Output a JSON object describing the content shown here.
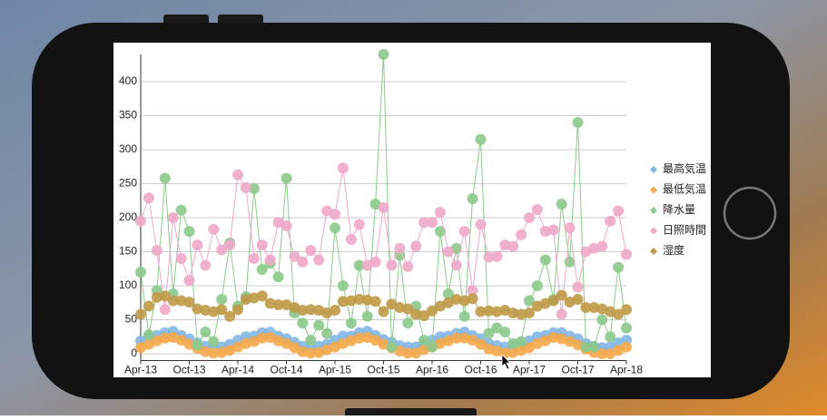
{
  "chart_data": {
    "type": "line",
    "categories": [
      "Apr-13",
      null,
      null,
      null,
      null,
      null,
      "Oct-13",
      null,
      null,
      null,
      null,
      null,
      "Apr-14",
      null,
      null,
      null,
      null,
      null,
      "Oct-14",
      null,
      null,
      null,
      null,
      null,
      "Apr-15",
      null,
      null,
      null,
      null,
      null,
      "Oct-15",
      null,
      null,
      null,
      null,
      null,
      "Apr-16",
      null,
      null,
      null,
      null,
      null,
      "Oct-16",
      null,
      null,
      null,
      null,
      null,
      "Apr-17",
      null,
      null,
      null,
      null,
      null,
      "Oct-17",
      null,
      null,
      null,
      null,
      null,
      "Apr-18"
    ],
    "ylim": [
      -10,
      440
    ],
    "yticks": [
      0,
      50,
      100,
      150,
      200,
      250,
      300,
      350,
      400
    ],
    "grid": true,
    "legend": "right",
    "series": [
      {
        "name": "最高気温",
        "color": "#83b7e6",
        "values": [
          19,
          24,
          27,
          31,
          33,
          27,
          22,
          16,
          11,
          10,
          10,
          14,
          20,
          25,
          26,
          31,
          32,
          26,
          22,
          17,
          11,
          10,
          11,
          14,
          20,
          26,
          26,
          31,
          33,
          27,
          21,
          17,
          12,
          10,
          10,
          15,
          20,
          25,
          26,
          30,
          32,
          27,
          22,
          15,
          12,
          10,
          11,
          14,
          19,
          25,
          27,
          31,
          31,
          26,
          22,
          15,
          11,
          9,
          10,
          16,
          20
        ]
      },
      {
        "name": "最低気温",
        "color": "#f5a94a",
        "values": [
          9,
          14,
          19,
          23,
          24,
          20,
          14,
          8,
          3,
          1,
          2,
          5,
          10,
          15,
          18,
          23,
          24,
          19,
          15,
          9,
          3,
          1,
          2,
          6,
          10,
          15,
          19,
          23,
          24,
          20,
          14,
          9,
          4,
          1,
          1,
          6,
          10,
          15,
          19,
          23,
          23,
          20,
          14,
          7,
          4,
          1,
          2,
          5,
          9,
          15,
          19,
          24,
          22,
          18,
          13,
          7,
          2,
          0,
          0,
          5,
          10
        ]
      },
      {
        "name": "降水量",
        "color": "#8cc98c",
        "values": [
          120,
          28,
          93,
          258,
          88,
          211,
          180,
          13,
          32,
          18,
          80,
          163,
          70,
          84,
          243,
          124,
          133,
          113,
          258,
          60,
          45,
          20,
          42,
          30,
          185,
          100,
          45,
          130,
          55,
          220,
          440,
          10,
          145,
          45,
          70,
          20,
          10,
          180,
          88,
          155,
          55,
          228,
          315,
          30,
          38,
          32,
          15,
          18,
          78,
          100,
          138,
          80,
          220,
          135,
          340,
          10,
          10,
          50,
          25,
          127,
          38
        ]
      },
      {
        "name": "日照時間",
        "color": "#eea8c8",
        "values": [
          195,
          229,
          152,
          65,
          200,
          140,
          108,
          160,
          130,
          183,
          153,
          160,
          263,
          244,
          140,
          160,
          138,
          193,
          188,
          143,
          135,
          152,
          138,
          210,
          205,
          273,
          168,
          190,
          130,
          135,
          215,
          130,
          155,
          128,
          158,
          193,
          193,
          208,
          150,
          130,
          180,
          93,
          190,
          142,
          143,
          160,
          158,
          175,
          200,
          212,
          180,
          182,
          58,
          185,
          98,
          150,
          155,
          158,
          195,
          210,
          146
        ]
      },
      {
        "name": "湿度",
        "color": "#bf9a48",
        "values": [
          58,
          70,
          83,
          85,
          78,
          78,
          76,
          66,
          64,
          62,
          65,
          55,
          65,
          80,
          82,
          85,
          74,
          72,
          72,
          68,
          64,
          65,
          64,
          60,
          64,
          77,
          78,
          80,
          79,
          77,
          62,
          73,
          68,
          66,
          58,
          56,
          63,
          70,
          75,
          80,
          78,
          81,
          62,
          63,
          62,
          64,
          60,
          58,
          60,
          70,
          74,
          78,
          86,
          76,
          80,
          68,
          68,
          66,
          62,
          58,
          65
        ]
      }
    ]
  }
}
